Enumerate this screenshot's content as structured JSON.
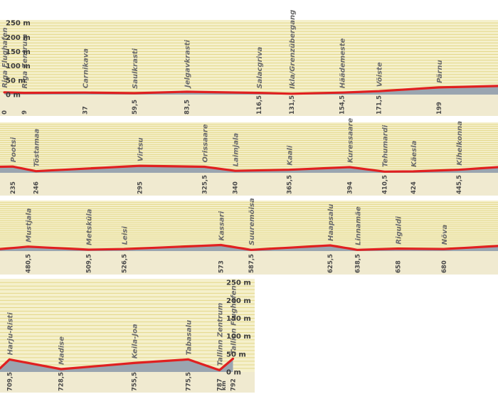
{
  "chart_data": {
    "type": "area",
    "title": "",
    "xlabel": "",
    "ylabel": "",
    "x_unit": "km",
    "y_ticks": [
      "0 m",
      "50 m",
      "100 m",
      "150 m",
      "200 m",
      "250 m"
    ],
    "ylim": [
      0,
      250
    ],
    "grid": true,
    "segments": [
      {
        "xlim": [
          -2,
          226
        ],
        "points": [
          {
            "km": "0",
            "name": "Riga Flughafen",
            "elev": 8
          },
          {
            "km": "9",
            "name": "Riga Zentrum",
            "elev": 6
          },
          {
            "km": "37",
            "name": "Carnikava",
            "elev": 7
          },
          {
            "km": "59,5",
            "name": "Saulkrasti",
            "elev": 5
          },
          {
            "km": "83,5",
            "name": "Jelgavkrasti",
            "elev": 10
          },
          {
            "km": "116,5",
            "name": "Salacgriva",
            "elev": 6
          },
          {
            "km": "131,5",
            "name": "Ikla/Grenzübergang",
            "elev": 3
          },
          {
            "km": "154,5",
            "name": "Häädemeste",
            "elev": 7
          },
          {
            "km": "171,5",
            "name": "Vöiste",
            "elev": 12
          },
          {
            "km": "199",
            "name": "Pärnu",
            "elev": 25
          },
          {
            "name": "",
            "x": 226,
            "elev": 30
          }
        ]
      },
      {
        "xlim": [
          229,
          464
        ],
        "points": [
          {
            "name": "",
            "x": 229,
            "elev": 30
          },
          {
            "km": "235",
            "name": "Pootsi",
            "elev": 31
          },
          {
            "km": "246",
            "name": "Tõstamaa",
            "elev": 8
          },
          {
            "km": "295",
            "name": "Virtsu",
            "elev": 35
          },
          {
            "km": "325,5",
            "name": "Orissaare",
            "elev": 30
          },
          {
            "km": "340",
            "name": "Laimjala",
            "elev": 10
          },
          {
            "km": "365,5",
            "name": "Kaali",
            "elev": 15
          },
          {
            "km": "394",
            "name": "Kuressaare",
            "elev": 28
          },
          {
            "km": "410,5",
            "name": "Tehumardi",
            "elev": 6
          },
          {
            "km": "424",
            "name": "Käesla",
            "elev": 7
          },
          {
            "km": "445,5",
            "name": "Kihelkonna",
            "elev": 15
          },
          {
            "name": "",
            "x": 464,
            "elev": 28
          }
        ]
      },
      {
        "xlim": [
          467,
          706
        ],
        "points": [
          {
            "name": "",
            "x": 467,
            "elev": 10
          },
          {
            "km": "480,5",
            "name": "Mustjala",
            "elev": 22
          },
          {
            "km": "509,5",
            "name": "Metsküla",
            "elev": 7
          },
          {
            "km": "526,5",
            "name": "Leisi",
            "elev": 10
          },
          {
            "km": "573",
            "name": "Kassari",
            "elev": 30
          },
          {
            "km": "587,5",
            "name": "Suuremõisa",
            "elev": 6
          },
          {
            "km": "625,5",
            "name": "Haapsalu",
            "elev": 28
          },
          {
            "km": "638,5",
            "name": "Linnamäe",
            "elev": 6
          },
          {
            "km": "658",
            "name": "Riguldi",
            "elev": 12
          },
          {
            "km": "680",
            "name": "Nõva",
            "elev": 10
          },
          {
            "name": "",
            "x": 706,
            "elev": 25
          }
        ]
      },
      {
        "xlim": [
          706,
          800
        ],
        "points": [
          {
            "name": "",
            "x": 706,
            "elev": 10
          },
          {
            "km": "709,5",
            "name": "Harju-Risti",
            "elev": 35
          },
          {
            "km": "728,5",
            "name": "Madise",
            "elev": 8
          },
          {
            "km": "755,5",
            "name": "Keila-Joa",
            "elev": 25
          },
          {
            "km": "775,5",
            "name": "Tabasalu",
            "elev": 35
          },
          {
            "km": "787",
            "name": "Tallinn Zentrum",
            "elev": 5
          },
          {
            "km": "792",
            "name": "Tallinn Flughafen",
            "elev": 37
          }
        ]
      }
    ]
  },
  "colors": {
    "panel": "#f5f0cc",
    "grid": "#e4d88a",
    "axis_band": "#f0ead0",
    "terrain": "#9aa5b0",
    "profile": "#e02020"
  }
}
